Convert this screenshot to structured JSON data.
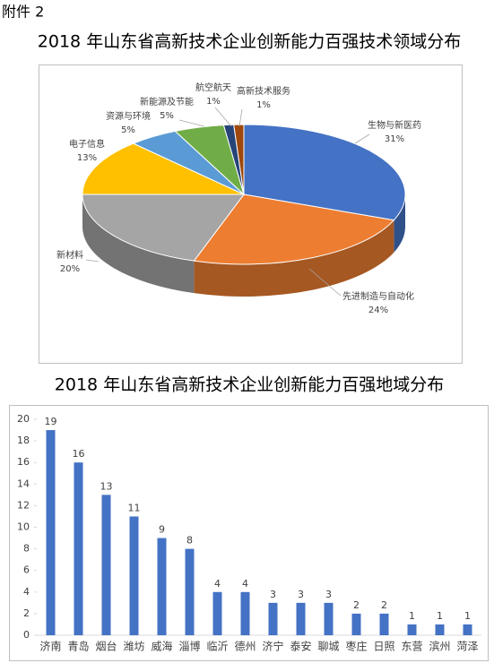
{
  "header": "附件 2",
  "chart_data": [
    {
      "type": "pie",
      "title": "2018 年山东省高新技术企业创新能力百强技术领域分布",
      "categories": [
        "生物与新医药",
        "先进制造与自动化",
        "新材料",
        "电子信息",
        "资源与环境",
        "新能源及节能",
        "航空航天",
        "高新技术服务"
      ],
      "values": [
        31,
        24,
        20,
        13,
        5,
        5,
        1,
        1
      ],
      "value_labels": [
        "31%",
        "24%",
        "20%",
        "13%",
        "5%",
        "5%",
        "1%",
        "1%"
      ],
      "colors": [
        "#4472c4",
        "#ed7d31",
        "#a5a5a5",
        "#ffc000",
        "#5b9bd5",
        "#70ad47",
        "#264478",
        "#9e480e"
      ]
    },
    {
      "type": "bar",
      "title": "2018 年山东省高新技术企业创新能力百强地域分布",
      "categories": [
        "济南",
        "青岛",
        "烟台",
        "潍坊",
        "威海",
        "淄博",
        "临沂",
        "德州",
        "济宁",
        "泰安",
        "聊城",
        "枣庄",
        "日照",
        "东营",
        "滨州",
        "菏泽"
      ],
      "values": [
        19,
        16,
        13,
        11,
        9,
        8,
        4,
        4,
        3,
        3,
        3,
        2,
        2,
        1,
        1,
        1
      ],
      "color": "#4472c4",
      "ylim": [
        0,
        20
      ],
      "yticks": [
        0,
        2,
        4,
        6,
        8,
        10,
        12,
        14,
        16,
        18,
        20
      ],
      "grid": false
    }
  ]
}
